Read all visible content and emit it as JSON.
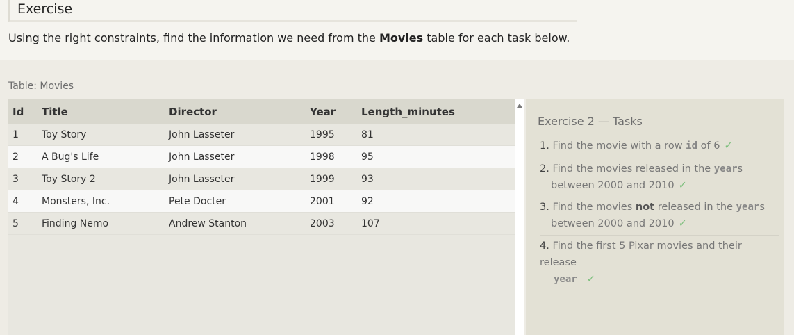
{
  "exercise": {
    "header": "Exercise",
    "intro_before": "Using the right constraints, find the information we need from the ",
    "intro_bold": "Movies",
    "intro_after": " table for each task below."
  },
  "table": {
    "caption": "Table: Movies",
    "columns": [
      "Id",
      "Title",
      "Director",
      "Year",
      "Length_minutes"
    ],
    "rows": [
      {
        "id": "1",
        "title": "Toy Story",
        "director": "John Lasseter",
        "year": "1995",
        "length": "81"
      },
      {
        "id": "2",
        "title": "A Bug's Life",
        "director": "John Lasseter",
        "year": "1998",
        "length": "95"
      },
      {
        "id": "3",
        "title": "Toy Story 2",
        "director": "John Lasseter",
        "year": "1999",
        "length": "93"
      },
      {
        "id": "4",
        "title": "Monsters, Inc.",
        "director": "Pete Docter",
        "year": "2001",
        "length": "92"
      },
      {
        "id": "5",
        "title": "Finding Nemo",
        "director": "Andrew Stanton",
        "year": "2003",
        "length": "107"
      }
    ]
  },
  "tasks": {
    "title": "Exercise 2 — Tasks",
    "check": "✓",
    "items": [
      {
        "num": "1.",
        "a": "Find the movie with a row ",
        "code": "id",
        "b": " of 6"
      },
      {
        "num": "2.",
        "a": "Find the movies released in the ",
        "code": "year",
        "b": "s",
        "c": "between 2000 and 2010"
      },
      {
        "num": "3.",
        "a": "Find the movies ",
        "bold": "not",
        "a2": " released in the ",
        "code": "year",
        "b": "s",
        "c": "between 2000 and 2010"
      },
      {
        "num": "4.",
        "a": "Find the first 5 Pixar movies and their release",
        "code": "year"
      }
    ]
  },
  "icons": {
    "scroll_up": "scroll-up-arrow-icon",
    "check": "check-icon"
  }
}
